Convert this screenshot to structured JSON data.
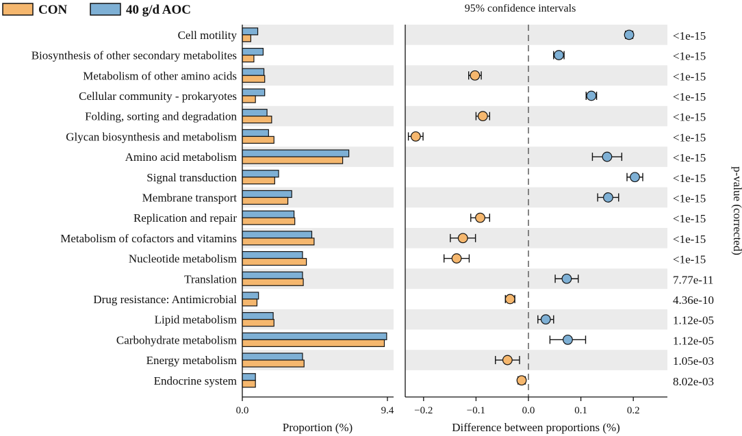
{
  "chart_data": {
    "type": "bar",
    "legend": [
      {
        "name": "CON",
        "color": "#f5b76e"
      },
      {
        "name": "40 g/d AOC",
        "color": "#7eb0d5"
      }
    ],
    "categories": [
      "Cell motility",
      "Biosynthesis of other secondary metabolites",
      "Metabolism of other amino acids",
      "Cellular community - prokaryotes",
      "Folding, sorting and degradation",
      "Glycan biosynthesis and metabolism",
      "Amino acid metabolism",
      "Signal transduction",
      "Membrane transport",
      "Replication and repair",
      "Metabolism of cofactors and vitamins",
      "Nucleotide metabolism",
      "Translation",
      "Drug resistance: Antimicrobial",
      "Lipid metabolism",
      "Carbohydrate metabolism",
      "Energy metabolism",
      "Endocrine system"
    ],
    "series": [
      {
        "name": "CON",
        "values": [
          0.55,
          0.75,
          1.45,
          0.85,
          1.9,
          2.05,
          6.5,
          2.1,
          2.95,
          3.4,
          4.65,
          4.15,
          3.95,
          0.95,
          2.05,
          9.2,
          4.0,
          0.85
        ]
      },
      {
        "name": "40 g/d AOC",
        "values": [
          1.0,
          1.35,
          1.4,
          1.45,
          1.6,
          1.7,
          6.9,
          2.35,
          3.2,
          3.35,
          4.5,
          3.9,
          3.9,
          1.05,
          2.0,
          9.35,
          3.9,
          0.85
        ]
      }
    ],
    "proportion_axis": {
      "label": "Proportion (%)",
      "range": [
        0,
        9.4
      ],
      "ticks": [
        "0.0",
        "9.4"
      ]
    },
    "difference": {
      "title": "95% confidence intervals",
      "xlabel": "Difference between proportions (%)",
      "xlim": [
        -0.235,
        0.265
      ],
      "ticks": [
        -0.2,
        -0.1,
        0.0,
        0.1,
        0.2
      ],
      "tick_labels": [
        "−0.2",
        "−0.1",
        "0.0",
        "0.1",
        "0.2"
      ],
      "estimates": [
        0.192,
        0.058,
        -0.102,
        0.12,
        -0.087,
        -0.215,
        0.15,
        0.203,
        0.152,
        -0.092,
        -0.125,
        -0.137,
        0.073,
        -0.035,
        0.033,
        0.075,
        -0.04,
        -0.013
      ],
      "ci_low": [
        0.185,
        0.048,
        -0.114,
        0.11,
        -0.1,
        -0.229,
        0.122,
        0.188,
        0.132,
        -0.11,
        -0.149,
        -0.161,
        0.051,
        -0.044,
        0.018,
        0.041,
        -0.063,
        -0.02
      ],
      "ci_high": [
        0.199,
        0.068,
        -0.09,
        0.13,
        -0.074,
        -0.201,
        0.178,
        0.218,
        0.172,
        -0.074,
        -0.101,
        -0.113,
        0.095,
        -0.026,
        0.048,
        0.109,
        -0.017,
        -0.006
      ],
      "favors": [
        "40 g/d AOC",
        "40 g/d AOC",
        "CON",
        "40 g/d AOC",
        "CON",
        "CON",
        "40 g/d AOC",
        "40 g/d AOC",
        "40 g/d AOC",
        "CON",
        "CON",
        "CON",
        "40 g/d AOC",
        "CON",
        "40 g/d AOC",
        "40 g/d AOC",
        "CON",
        "CON"
      ]
    },
    "p_values": [
      "<1e-15",
      "<1e-15",
      "<1e-15",
      "<1e-15",
      "<1e-15",
      "<1e-15",
      "<1e-15",
      "<1e-15",
      "<1e-15",
      "<1e-15",
      "<1e-15",
      "<1e-15",
      "7.77e-11",
      "4.36e-10",
      "1.12e-05",
      "1.12e-05",
      "1.05e-03",
      "8.02e-03"
    ],
    "p_label": "p-value (corrected)"
  }
}
